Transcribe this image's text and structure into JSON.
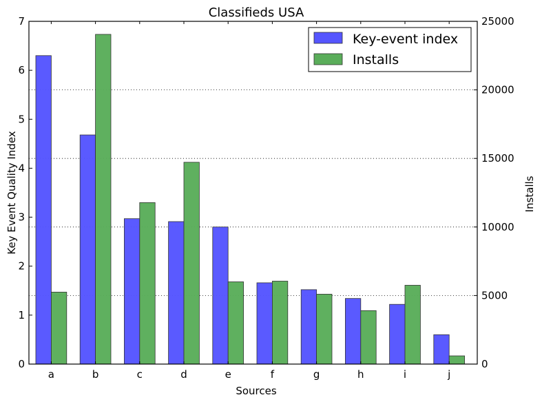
{
  "chart_data": {
    "type": "bar",
    "title": "Classifieds USA",
    "xlabel": "Sources",
    "ylabel_left": "Key Event Quality Index",
    "ylabel_right": "Installs",
    "categories": [
      "a",
      "b",
      "c",
      "d",
      "e",
      "f",
      "g",
      "h",
      "i",
      "j"
    ],
    "ylim_left": [
      0,
      7
    ],
    "ylim_right": [
      0,
      25000
    ],
    "yticks_left": [
      "0",
      "1",
      "2",
      "3",
      "4",
      "5",
      "6",
      "7"
    ],
    "yticks_right": [
      "0",
      "5000",
      "10000",
      "15000",
      "20000",
      "25000"
    ],
    "grid": "horizontal dotted lines at right-axis ticks",
    "legend_position": "top-right",
    "series": [
      {
        "name": "Key-event index",
        "axis": "left",
        "color": "#5555ff",
        "values": [
          6.3,
          4.68,
          2.97,
          2.91,
          2.8,
          1.66,
          1.52,
          1.34,
          1.22,
          0.6
        ]
      },
      {
        "name": "Installs",
        "axis": "right",
        "color": "#5aad5a",
        "values": [
          5250,
          24050,
          11780,
          14720,
          6000,
          6050,
          5100,
          3900,
          5750,
          600
        ]
      }
    ]
  }
}
